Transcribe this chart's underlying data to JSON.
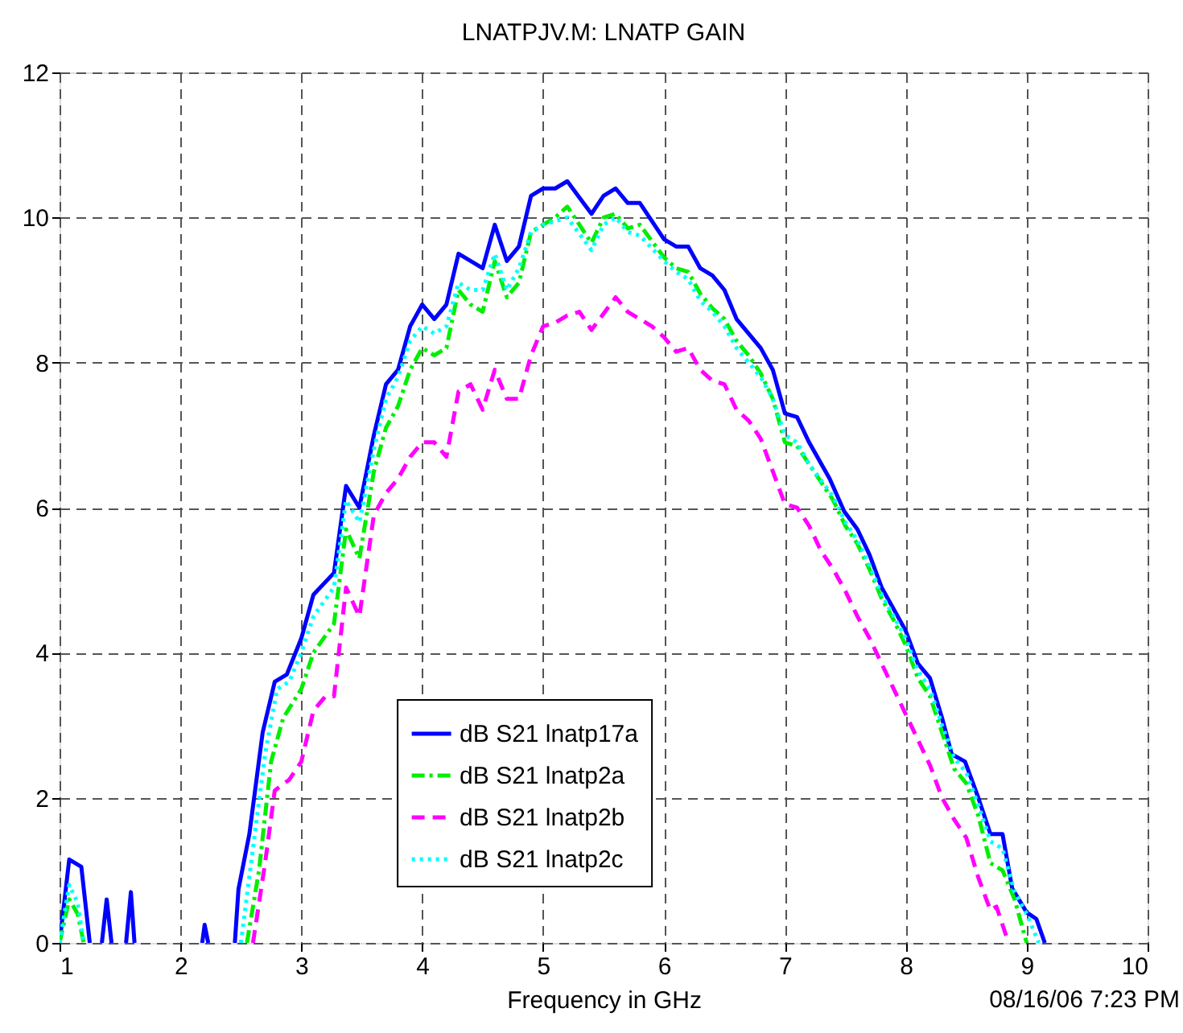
{
  "chart_data": {
    "type": "line",
    "title": "LNATPJV.M:  LNATP GAIN",
    "xlabel": "Frequency in GHz",
    "annotations": [
      "08/16/06  7:23 PM"
    ],
    "xlim": [
      1,
      10
    ],
    "xticks": [
      1,
      2,
      3,
      4,
      5,
      6,
      7,
      8,
      9,
      10
    ],
    "ylim": [
      0,
      12
    ],
    "yticks": [
      0,
      2,
      4,
      6,
      8,
      10,
      12
    ],
    "grid": true,
    "legend": "bottom",
    "marker": "none",
    "series": [
      {
        "name": "dB S21 lnatp17a",
        "color": "#0000ff",
        "line_style": "solid",
        "x": [
          1.0,
          1.08,
          1.18,
          1.25,
          null,
          1.35,
          1.39,
          1.43,
          null,
          1.55,
          1.59,
          1.62,
          null,
          2.18,
          2.2,
          2.23,
          null,
          2.45,
          2.48,
          2.57,
          2.68,
          2.78,
          2.88,
          3.0,
          3.1,
          3.27,
          3.37,
          3.48,
          3.6,
          3.7,
          3.8,
          3.9,
          4.0,
          4.1,
          4.2,
          4.3,
          4.4,
          4.5,
          4.6,
          4.7,
          4.8,
          4.9,
          5.0,
          5.1,
          5.2,
          5.4,
          5.5,
          5.6,
          5.7,
          5.8,
          6.0,
          6.1,
          6.2,
          6.3,
          6.4,
          6.5,
          6.6,
          6.7,
          6.8,
          6.9,
          7.0,
          7.1,
          7.2,
          7.37,
          7.49,
          7.6,
          7.7,
          7.8,
          7.9,
          8.0,
          8.1,
          8.2,
          8.3,
          8.38,
          8.49,
          8.6,
          8.7,
          8.8,
          8.88,
          9.0,
          9.08,
          9.15
        ],
        "values": [
          0,
          1.15,
          1.05,
          0,
          null,
          0,
          0.6,
          0,
          null,
          0,
          0.7,
          0,
          null,
          0,
          0.25,
          0,
          null,
          0,
          0.74,
          1.5,
          2.9,
          3.6,
          3.7,
          4.2,
          4.8,
          5.1,
          6.3,
          6.0,
          7.0,
          7.7,
          7.9,
          8.5,
          8.8,
          8.6,
          8.8,
          9.5,
          9.4,
          9.3,
          9.9,
          9.4,
          9.6,
          10.3,
          10.4,
          10.4,
          10.5,
          10.05,
          10.3,
          10.4,
          10.2,
          10.2,
          9.7,
          9.6,
          9.6,
          9.3,
          9.2,
          9.0,
          8.6,
          8.4,
          8.2,
          7.9,
          7.3,
          7.25,
          6.9,
          6.4,
          5.95,
          5.7,
          5.35,
          4.9,
          4.6,
          4.3,
          3.85,
          3.65,
          3.1,
          2.6,
          2.5,
          2.0,
          1.5,
          1.5,
          0.75,
          0.42,
          0.33,
          0
        ]
      },
      {
        "name": "dB S21 lnatp2a",
        "color": "#00ee00",
        "line_style": "dashdot",
        "x": [
          1.0,
          1.08,
          1.15,
          1.2,
          null,
          2.55,
          2.65,
          2.75,
          2.85,
          3.0,
          3.1,
          3.27,
          3.37,
          3.48,
          3.6,
          3.7,
          3.8,
          3.9,
          4.0,
          4.1,
          4.2,
          4.3,
          4.4,
          4.5,
          4.6,
          4.7,
          4.8,
          4.9,
          5.0,
          5.1,
          5.2,
          5.4,
          5.5,
          5.6,
          5.7,
          5.8,
          6.0,
          6.1,
          6.2,
          6.3,
          6.4,
          6.5,
          6.6,
          6.7,
          6.8,
          6.9,
          7.0,
          7.1,
          7.2,
          7.4,
          7.5,
          7.6,
          7.7,
          7.8,
          7.9,
          8.0,
          8.1,
          8.2,
          8.3,
          8.4,
          8.5,
          8.6,
          8.7,
          8.8,
          8.9,
          9.0
        ],
        "values": [
          0,
          0.6,
          0.4,
          0,
          null,
          0,
          1.0,
          2.5,
          3.1,
          3.5,
          4.0,
          4.4,
          5.7,
          5.3,
          6.5,
          7.1,
          7.4,
          7.9,
          8.2,
          8.1,
          8.2,
          9.0,
          8.8,
          8.7,
          9.4,
          8.9,
          9.1,
          9.8,
          9.9,
          10.0,
          10.15,
          9.65,
          10.0,
          10.05,
          9.85,
          9.9,
          9.45,
          9.3,
          9.25,
          8.95,
          8.75,
          8.6,
          8.3,
          8.1,
          7.85,
          7.5,
          6.9,
          6.85,
          6.6,
          6.1,
          5.75,
          5.5,
          5.15,
          4.75,
          4.45,
          4.1,
          3.65,
          3.4,
          2.9,
          2.4,
          2.2,
          1.75,
          1.1,
          1.0,
          0.6,
          0
        ]
      },
      {
        "name": "dB S21 lnatp2b",
        "color": "#ff00ff",
        "line_style": "dashed",
        "x": [
          2.6,
          2.7,
          2.78,
          2.9,
          3.0,
          3.1,
          3.2,
          3.27,
          3.37,
          3.48,
          3.6,
          3.7,
          3.8,
          3.9,
          4.0,
          4.1,
          4.2,
          4.3,
          4.4,
          4.5,
          4.6,
          4.7,
          4.8,
          4.9,
          5.0,
          5.1,
          5.2,
          5.3,
          5.4,
          5.6,
          5.7,
          5.8,
          5.9,
          6.0,
          6.1,
          6.2,
          6.3,
          6.4,
          6.5,
          6.6,
          6.7,
          6.8,
          6.9,
          7.0,
          7.1,
          7.2,
          7.3,
          7.4,
          7.5,
          7.6,
          7.7,
          7.8,
          7.9,
          8.0,
          8.1,
          8.2,
          8.3,
          8.4,
          8.5,
          8.6,
          8.7,
          8.75,
          8.85
        ],
        "values": [
          0,
          1.1,
          2.1,
          2.25,
          2.5,
          3.2,
          3.4,
          3.4,
          4.9,
          4.5,
          5.9,
          6.2,
          6.4,
          6.7,
          6.9,
          6.9,
          6.7,
          7.6,
          7.7,
          7.35,
          7.9,
          7.5,
          7.5,
          8.1,
          8.5,
          8.55,
          8.65,
          8.7,
          8.45,
          8.9,
          8.7,
          8.6,
          8.5,
          8.35,
          8.15,
          8.2,
          7.9,
          7.75,
          7.7,
          7.35,
          7.2,
          6.95,
          6.5,
          6.05,
          6.0,
          5.75,
          5.4,
          5.15,
          4.85,
          4.5,
          4.2,
          3.85,
          3.5,
          3.15,
          2.8,
          2.45,
          2.0,
          1.7,
          1.45,
          0.9,
          0.45,
          0.5,
          0
        ]
      },
      {
        "name": "dB S21 lnatp2c",
        "color": "#00ffff",
        "line_style": "dotted",
        "x": [
          1.0,
          1.08,
          1.15,
          1.2,
          null,
          2.5,
          2.6,
          2.7,
          2.8,
          2.9,
          3.0,
          3.1,
          3.27,
          3.37,
          3.48,
          3.6,
          3.7,
          3.8,
          3.9,
          4.0,
          4.1,
          4.2,
          4.3,
          4.4,
          4.5,
          4.6,
          4.7,
          4.8,
          4.9,
          5.0,
          5.1,
          5.2,
          5.4,
          5.5,
          5.6,
          5.7,
          5.8,
          6.0,
          6.1,
          6.2,
          6.3,
          6.4,
          6.5,
          6.6,
          6.7,
          6.8,
          6.9,
          7.0,
          7.1,
          7.2,
          7.4,
          7.5,
          7.6,
          7.7,
          7.8,
          7.9,
          8.0,
          8.1,
          8.2,
          8.3,
          8.4,
          8.5,
          8.6,
          8.7,
          8.8,
          8.9,
          9.0,
          9.1
        ],
        "values": [
          0,
          0.8,
          0.55,
          0,
          null,
          0,
          1.3,
          2.6,
          3.5,
          3.6,
          4.0,
          4.5,
          4.9,
          6.1,
          5.8,
          6.8,
          7.5,
          7.8,
          8.3,
          8.5,
          8.4,
          8.5,
          9.1,
          9.0,
          9.0,
          9.5,
          9.0,
          9.3,
          9.8,
          9.9,
          9.95,
          10.0,
          9.55,
          9.9,
          10.0,
          9.8,
          9.75,
          9.4,
          9.25,
          9.15,
          8.85,
          8.7,
          8.5,
          8.2,
          8.0,
          7.8,
          7.5,
          7.0,
          6.9,
          6.6,
          6.15,
          5.8,
          5.55,
          5.2,
          4.8,
          4.5,
          4.2,
          3.75,
          3.5,
          3.0,
          2.55,
          2.35,
          1.9,
          1.4,
          1.3,
          0.7,
          0.4,
          0
        ]
      }
    ]
  }
}
